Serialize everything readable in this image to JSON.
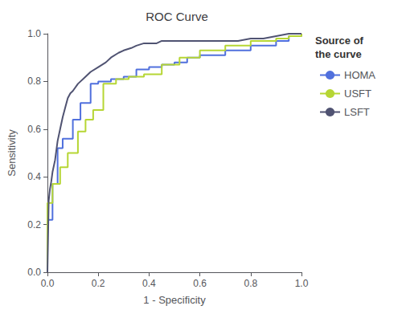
{
  "chart_data": {
    "type": "line",
    "title": "ROC Curve",
    "xlabel": "1 - Specificity",
    "ylabel": "Sensitivity",
    "legend_title": "Source of\nthe curve",
    "xlim": [
      0.0,
      1.0
    ],
    "ylim": [
      0.0,
      1.0
    ],
    "xticks": [
      {
        "value": 0,
        "label": "0.0"
      },
      0.2,
      0.4,
      0.6,
      0.8,
      {
        "value": 1,
        "label": "1.0"
      }
    ],
    "yticks": [
      {
        "value": 0,
        "label": "0.0"
      },
      0.2,
      0.4,
      0.6,
      0.8,
      {
        "value": 1,
        "label": "1.0"
      }
    ],
    "grid": false,
    "legend": "right",
    "series": [
      {
        "name": "HOMA",
        "x": [
          0.0,
          0.0,
          0.02,
          0.02,
          0.04,
          0.04,
          0.06,
          0.06,
          0.1,
          0.1,
          0.13,
          0.13,
          0.17,
          0.17,
          0.2,
          0.2,
          0.25,
          0.25,
          0.3,
          0.3,
          0.35,
          0.35,
          0.4,
          0.4,
          0.45,
          0.45,
          0.5,
          0.5,
          0.55,
          0.55,
          0.6,
          0.6,
          0.7,
          0.7,
          0.8,
          0.8,
          0.9,
          0.9,
          0.95,
          0.95,
          1.0,
          1.0
        ],
        "values": [
          0.0,
          0.22,
          0.22,
          0.37,
          0.37,
          0.52,
          0.52,
          0.56,
          0.56,
          0.64,
          0.64,
          0.71,
          0.71,
          0.79,
          0.79,
          0.8,
          0.8,
          0.81,
          0.81,
          0.82,
          0.82,
          0.85,
          0.85,
          0.86,
          0.86,
          0.87,
          0.87,
          0.88,
          0.88,
          0.9,
          0.9,
          0.91,
          0.91,
          0.93,
          0.93,
          0.95,
          0.95,
          0.97,
          0.97,
          0.99,
          0.99,
          1.0
        ]
      },
      {
        "name": "USFT",
        "x": [
          0.0,
          0.0,
          0.02,
          0.02,
          0.05,
          0.05,
          0.08,
          0.08,
          0.12,
          0.12,
          0.15,
          0.15,
          0.18,
          0.18,
          0.22,
          0.22,
          0.27,
          0.27,
          0.32,
          0.32,
          0.38,
          0.38,
          0.45,
          0.45,
          0.52,
          0.52,
          0.6,
          0.6,
          0.7,
          0.7,
          0.8,
          0.8,
          0.9,
          0.9,
          0.95,
          0.95,
          1.0,
          1.0
        ],
        "values": [
          0.0,
          0.29,
          0.29,
          0.37,
          0.37,
          0.44,
          0.44,
          0.5,
          0.5,
          0.59,
          0.59,
          0.64,
          0.64,
          0.68,
          0.68,
          0.79,
          0.79,
          0.81,
          0.81,
          0.82,
          0.82,
          0.83,
          0.83,
          0.87,
          0.87,
          0.9,
          0.9,
          0.93,
          0.93,
          0.95,
          0.95,
          0.97,
          0.97,
          0.98,
          0.98,
          0.99,
          0.99,
          1.0
        ]
      },
      {
        "name": "LSFT",
        "x": [
          0.0,
          0.005,
          0.01,
          0.015,
          0.02,
          0.03,
          0.04,
          0.05,
          0.06,
          0.07,
          0.08,
          0.09,
          0.1,
          0.12,
          0.15,
          0.17,
          0.2,
          0.23,
          0.25,
          0.28,
          0.3,
          0.33,
          0.35,
          0.38,
          0.4,
          0.43,
          0.45,
          0.48,
          0.5,
          0.53,
          0.55,
          0.6,
          0.65,
          0.7,
          0.75,
          0.8,
          0.85,
          0.9,
          0.95,
          1.0
        ],
        "values": [
          0.0,
          0.3,
          0.35,
          0.38,
          0.42,
          0.47,
          0.55,
          0.6,
          0.65,
          0.69,
          0.73,
          0.75,
          0.76,
          0.79,
          0.82,
          0.84,
          0.86,
          0.88,
          0.9,
          0.92,
          0.93,
          0.94,
          0.95,
          0.96,
          0.96,
          0.96,
          0.97,
          0.97,
          0.97,
          0.97,
          0.97,
          0.97,
          0.97,
          0.97,
          0.97,
          0.98,
          0.98,
          0.99,
          1.0,
          1.0
        ]
      }
    ]
  }
}
